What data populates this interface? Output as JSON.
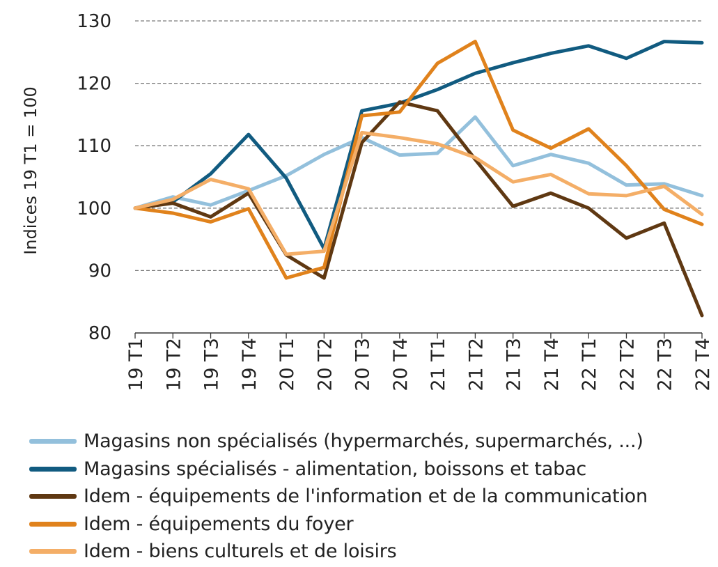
{
  "chart_data": {
    "type": "line",
    "ylabel": "Indices 19 T1 = 100",
    "ylim": [
      80,
      130
    ],
    "yticks": [
      80,
      90,
      100,
      110,
      120,
      130
    ],
    "grid": "horizontal dashed",
    "legend_position": "bottom",
    "categories": [
      "19 T1",
      "19 T2",
      "19 T3",
      "19 T4",
      "20 T1",
      "20 T2",
      "20 T3",
      "20 T4",
      "21 T1",
      "21 T2",
      "21 T3",
      "21 T4",
      "22 T1",
      "22 T2",
      "22 T3",
      "22 T4"
    ],
    "series": [
      {
        "name": "Magasins non spécialisés (hypermarchés, supermarchés, ...)",
        "color": "#93c0dc",
        "values": [
          100,
          101.8,
          100.5,
          102.8,
          105.2,
          108.6,
          111.3,
          108.5,
          108.8,
          114.6,
          106.8,
          108.6,
          107.2,
          103.7,
          103.9,
          102.0
        ]
      },
      {
        "name": "Magasins spécialisés - alimentation, boissons et tabac",
        "color": "#115b80",
        "values": [
          100,
          101.0,
          105.5,
          111.8,
          104.8,
          93.5,
          115.6,
          116.8,
          119.0,
          121.6,
          123.3,
          124.8,
          126.0,
          124.0,
          126.7,
          126.5
        ]
      },
      {
        "name": "Idem - équipements de l'information et de la communication",
        "color": "#5f3812",
        "values": [
          100,
          100.8,
          98.6,
          102.4,
          92.5,
          88.8,
          110.5,
          117.0,
          115.6,
          107.8,
          100.3,
          102.4,
          100.0,
          95.2,
          97.6,
          82.8
        ]
      },
      {
        "name": "Idem - équipements du foyer",
        "color": "#e0821c",
        "values": [
          100,
          99.2,
          97.8,
          99.9,
          88.8,
          90.5,
          114.8,
          115.4,
          123.2,
          126.7,
          112.5,
          109.6,
          112.7,
          106.8,
          99.8,
          97.4
        ]
      },
      {
        "name": "Idem - biens culturels et de loisirs",
        "color": "#f4ae67",
        "values": [
          100,
          101.4,
          104.6,
          103.1,
          92.6,
          93.1,
          112.1,
          111.3,
          110.3,
          108.1,
          104.2,
          105.4,
          102.3,
          102.0,
          103.5,
          99.0
        ]
      }
    ]
  }
}
